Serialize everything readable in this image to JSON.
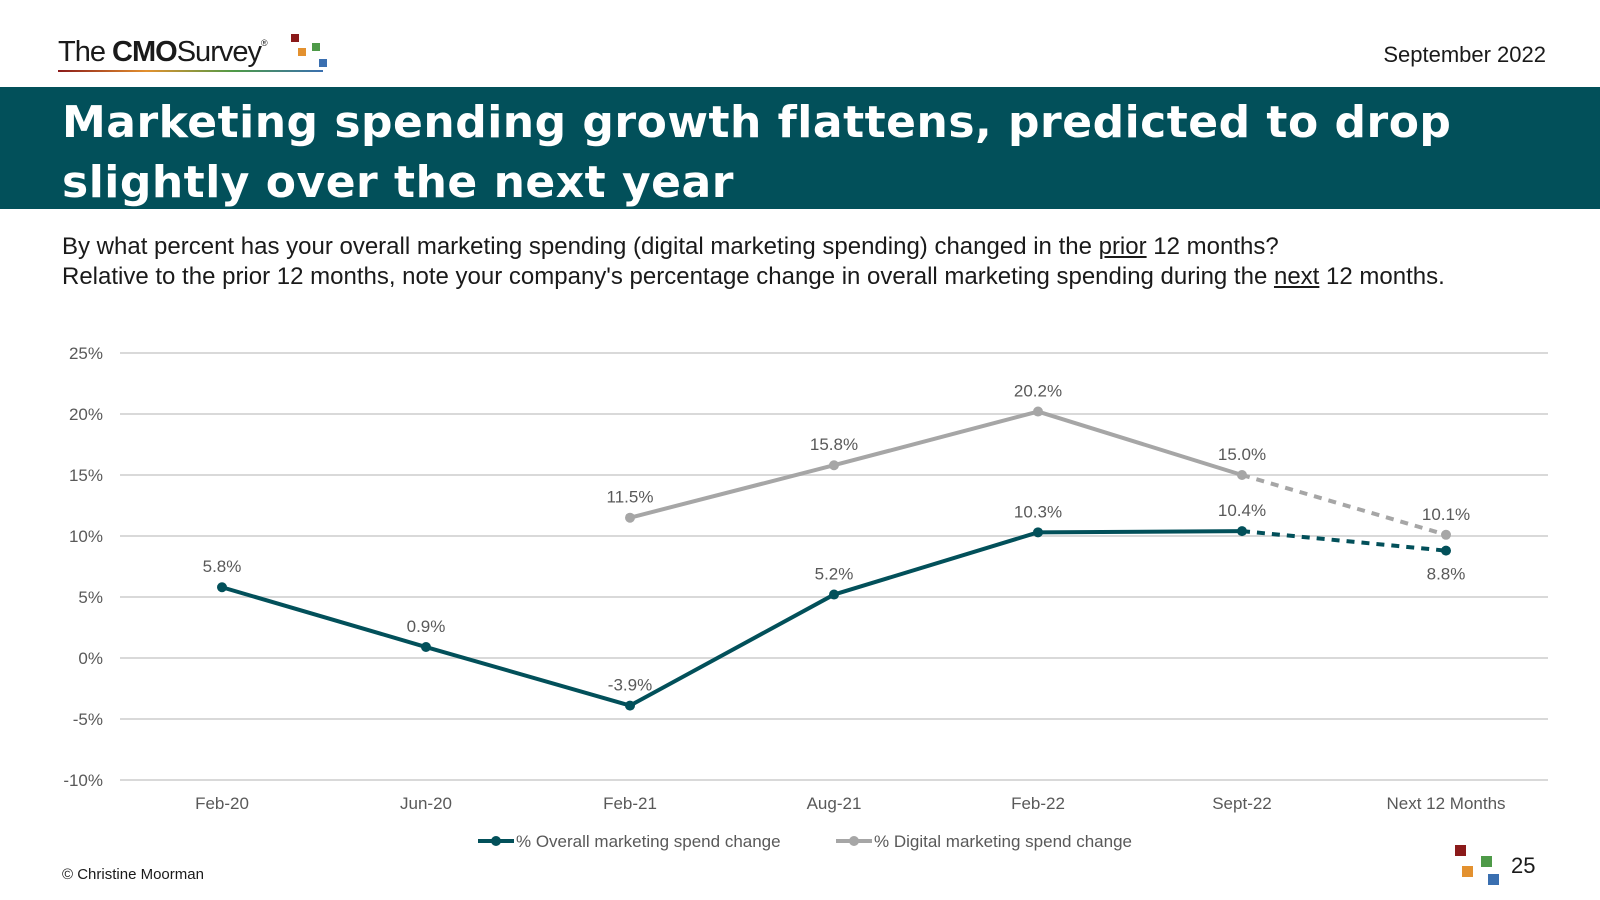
{
  "header": {
    "logo": {
      "the": "The",
      "cmo": "CMO",
      "survey": "Survey",
      "reg": "®"
    },
    "date": "September 2022"
  },
  "title": "Marketing spending growth flattens, predicted to drop slightly over the next year",
  "question": {
    "line1_pre": "By what percent has your overall marketing spending (digital marketing spending) changed in the ",
    "line1_u": "prior",
    "line1_post": " 12 months?",
    "line2_pre": "Relative to the prior 12 months, note your company's percentage change in overall marketing spending during the ",
    "line2_u": "next",
    "line2_post": " 12 months."
  },
  "chart_data": {
    "type": "line",
    "title": "",
    "xlabel": "",
    "ylabel": "",
    "categories": [
      "Feb-20",
      "Jun-20",
      "Feb-21",
      "Aug-21",
      "Feb-22",
      "Sept-22",
      "Next 12 Months"
    ],
    "ylim": [
      -10,
      25
    ],
    "yticks": [
      25,
      20,
      15,
      10,
      5,
      0,
      -5,
      -10
    ],
    "ytick_labels": [
      "25%",
      "20%",
      "15%",
      "10%",
      "5%",
      "0%",
      "-5%",
      "-10%"
    ],
    "grid": true,
    "legend_position": "bottom",
    "series": [
      {
        "name": "% Overall marketing spend change",
        "color": "#02505a",
        "values": [
          5.8,
          0.9,
          -3.9,
          5.2,
          10.3,
          10.4,
          8.8
        ],
        "labels": [
          "5.8%",
          "0.9%",
          "-3.9%",
          "5.2%",
          "10.3%",
          "10.4%",
          "8.8%"
        ],
        "label_position": [
          "above",
          "above",
          "above",
          "above",
          "above",
          "above",
          "below"
        ],
        "dashed_from_index": 5
      },
      {
        "name": "% Digital marketing spend change",
        "color": "#a6a6a6",
        "values": [
          null,
          null,
          11.5,
          15.8,
          20.2,
          15.0,
          10.1
        ],
        "labels": [
          null,
          null,
          "11.5%",
          "15.8%",
          "20.2%",
          "15.0%",
          "10.1%"
        ],
        "label_position": [
          "above",
          "above",
          "above",
          "above",
          "above",
          "above",
          "above"
        ],
        "dashed_from_index": 5
      }
    ]
  },
  "footer": {
    "copyright": "© Christine Moorman",
    "page_number": "25"
  }
}
